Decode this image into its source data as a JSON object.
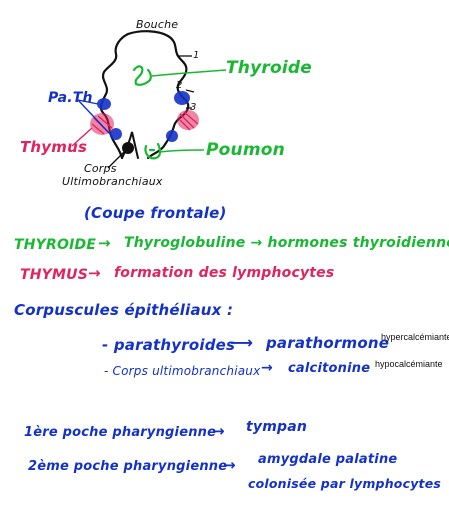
{
  "colors": {
    "green": "#19b832",
    "blue": "#1432c8",
    "pink": "#e0245e",
    "black": "#111111"
  },
  "diagram": {
    "labels": {
      "bouche": "Bouche",
      "one": "1",
      "two": "2",
      "three": "3",
      "thyroide": "Thyroide",
      "path": "Pa.Th",
      "thymus": "Thymus",
      "poumon": "Poumon",
      "corps_line1": "Corps",
      "corps_line2": "Ultimobranchiaux"
    }
  },
  "notes": {
    "coupe": "(Coupe frontale)",
    "thyroide_left": "THYROIDE",
    "thyroide_right": "Thyroglobuline → hormones thyroidiennes",
    "thymus_left": "THYMUS",
    "thymus_right": "formation des lymphocytes",
    "corpuscules": "Corpuscules épithéliaux :",
    "parathyroides": "- parathyroides",
    "parathormone": "parathormone",
    "hypercalcemiante": "hypercalcémiante",
    "corps_ultimo": "- Corps ultimobranchiaux",
    "calcitonine": "calcitonine",
    "hypocalcemiante": "hypocalcémiante",
    "poche1_left": "1ère poche pharyngienne",
    "poche1_right": "tympan",
    "poche2_left": "2ème poche pharyngienne",
    "poche2_right_line1": "amygdale palatine",
    "poche2_right_line2": "colonisée par lymphocytes"
  }
}
